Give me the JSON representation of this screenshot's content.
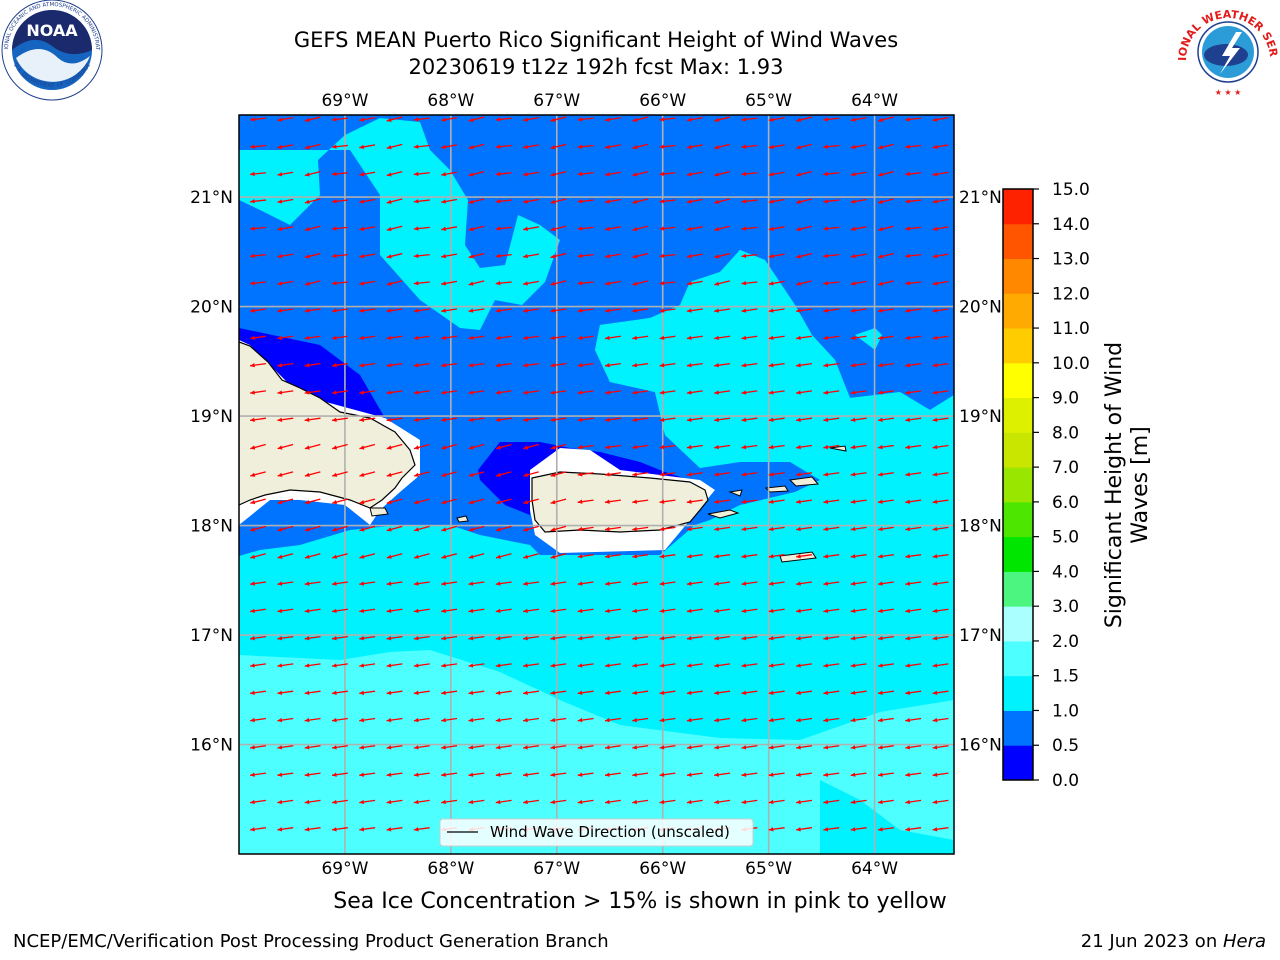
{
  "header": {
    "title_line1": "GEFS MEAN Puerto Rico Significant Height of Wind Waves",
    "title_line2": "20230619 t12z 192h fcst   Max: 1.93"
  },
  "logos": {
    "left": "NOAA",
    "left_ring_top": "NATIONAL OCEANIC AND ATMOSPHERIC ADMINISTRATION",
    "left_ring_bottom": "U.S. DEPARTMENT OF COMMERCE",
    "right_ring": "NATIONAL WEATHER SERVICE"
  },
  "map": {
    "lon_labels": [
      "69°W",
      "68°W",
      "67°W",
      "66°W",
      "65°W",
      "64°W"
    ],
    "lat_labels": [
      "21°N",
      "20°N",
      "19°N",
      "18°N",
      "17°N",
      "16°N"
    ],
    "lon_range": [
      -70.0,
      -63.25
    ],
    "lat_range": [
      15.0,
      21.75
    ],
    "legend_label": "Wind Wave Direction (unscaled)",
    "arrow_color": "#ff0000",
    "land_color": "#efefdc"
  },
  "colorbar": {
    "label": "Significant Height of Wind Waves [m]",
    "ticks": [
      "0.0",
      "0.5",
      "1.0",
      "1.5",
      "2.0",
      "3.0",
      "4.0",
      "5.0",
      "6.0",
      "7.0",
      "8.0",
      "9.0",
      "10.0",
      "11.0",
      "12.0",
      "13.0",
      "14.0",
      "15.0"
    ],
    "colors": [
      "#0000ff",
      "#0073ff",
      "#00f2ff",
      "#4dffff",
      "#aaffff",
      "#4cf580",
      "#00e600",
      "#4ce600",
      "#99e600",
      "#c8e600",
      "#dcf000",
      "#ffff00",
      "#ffcc00",
      "#ffaa00",
      "#ff8800",
      "#ff5500",
      "#ff2200"
    ]
  },
  "note": "Sea Ice Concentration > 15% is shown in pink to yellow",
  "footer": {
    "left": "NCEP/EMC/Verification Post Processing Product Generation Branch",
    "date": "21 Jun 2023 on ",
    "host": "Hera"
  }
}
